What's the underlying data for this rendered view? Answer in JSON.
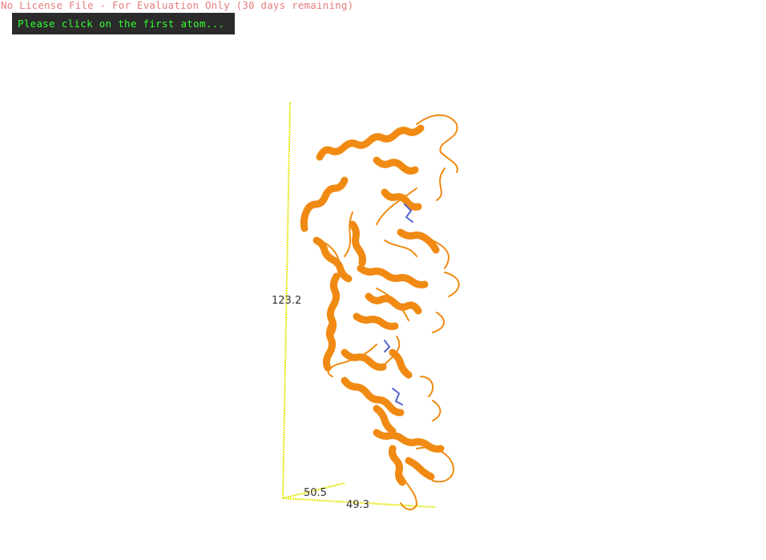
{
  "license_notice": "No License File - For Evaluation Only (30 days remaining)",
  "prompt_text": "Please click on the first atom...",
  "viewer": {
    "molecule_color": "#f08a12",
    "box_color": "#e8e800",
    "dimension_labels": {
      "height": "123.2",
      "depth": "50.5",
      "width": "49.3"
    }
  }
}
